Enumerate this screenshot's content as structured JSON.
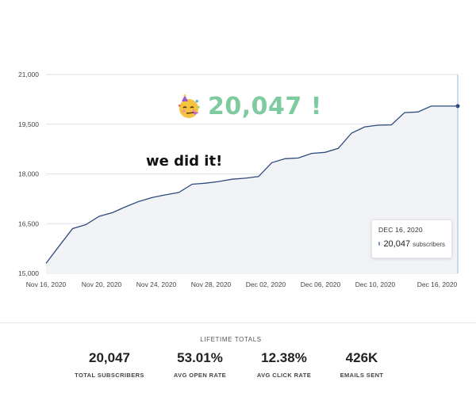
{
  "chart_data": {
    "type": "area",
    "x_labels": [
      "Nov 16, 2020",
      "Nov 20, 2020",
      "Nov 24, 2020",
      "Nov 28, 2020",
      "Dec 02, 2020",
      "Dec 06, 2020",
      "Dec 10, 2020",
      "Dec 16, 2020"
    ],
    "x": [
      "Nov 16",
      "Nov 17",
      "Nov 18",
      "Nov 19",
      "Nov 20",
      "Nov 21",
      "Nov 22",
      "Nov 23",
      "Nov 24",
      "Nov 25",
      "Nov 26",
      "Nov 27",
      "Nov 28",
      "Nov 29",
      "Nov 30",
      "Dec 01",
      "Dec 02",
      "Dec 03",
      "Dec 04",
      "Dec 05",
      "Dec 06",
      "Dec 07",
      "Dec 08",
      "Dec 09",
      "Dec 10",
      "Dec 11",
      "Dec 12",
      "Dec 13",
      "Dec 14",
      "Dec 15",
      "Dec 16",
      "Dec 17"
    ],
    "values": [
      15300,
      15830,
      16350,
      16470,
      16720,
      16830,
      17010,
      17170,
      17290,
      17370,
      17440,
      17690,
      17720,
      17770,
      17840,
      17870,
      17920,
      18340,
      18460,
      18480,
      18620,
      18650,
      18770,
      19230,
      19420,
      19470,
      19480,
      19850,
      19870,
      20047,
      20047,
      20047
    ],
    "y_ticks": [
      15000,
      16500,
      18000,
      19500,
      21000
    ],
    "y_tick_labels": [
      "15,000",
      "16,500",
      "18,000",
      "19,500",
      "21,000"
    ],
    "ylim": [
      15000,
      21000
    ],
    "grid": true,
    "line_color": "#2f4a7d",
    "fill_color": "#f2f3f7",
    "grid_color": "#dfe2e8",
    "cursor_color": "#9ab4e6"
  },
  "tooltip": {
    "date": "DEC 16, 2020",
    "value": "20,047",
    "unit": "subscribers",
    "dot_color": "#7f8db0"
  },
  "milestone": {
    "icon": "partying-face-icon",
    "text": "20,047 !"
  },
  "note": "we did it!",
  "totals": {
    "title": "LIFETIME TOTALS",
    "stats": [
      {
        "value": "20,047",
        "label": "TOTAL SUBSCRIBERS"
      },
      {
        "value": "53.01%",
        "label": "AVG OPEN RATE"
      },
      {
        "value": "12.38%",
        "label": "AVG CLICK RATE"
      },
      {
        "value": "426K",
        "label": "EMAILS SENT"
      }
    ]
  }
}
